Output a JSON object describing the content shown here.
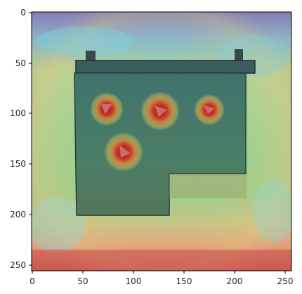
{
  "image_axes": {
    "x_ticks": [
      {
        "value": 0,
        "label": "0"
      },
      {
        "value": 50,
        "label": "50"
      },
      {
        "value": 100,
        "label": "100"
      },
      {
        "value": 150,
        "label": "150"
      },
      {
        "value": 200,
        "label": "200"
      },
      {
        "value": 250,
        "label": "250"
      }
    ],
    "y_ticks": [
      {
        "value": 0,
        "label": "0"
      },
      {
        "value": 50,
        "label": "50"
      },
      {
        "value": 100,
        "label": "100"
      },
      {
        "value": 150,
        "label": "150"
      },
      {
        "value": 200,
        "label": "200"
      },
      {
        "value": 250,
        "label": "250"
      }
    ],
    "xlim": [
      0,
      256
    ],
    "ylim": [
      0,
      256
    ]
  },
  "image_content": {
    "subject": "battery-with-heatmap-overlay",
    "colormap": "jet",
    "hot_spots": 4
  }
}
